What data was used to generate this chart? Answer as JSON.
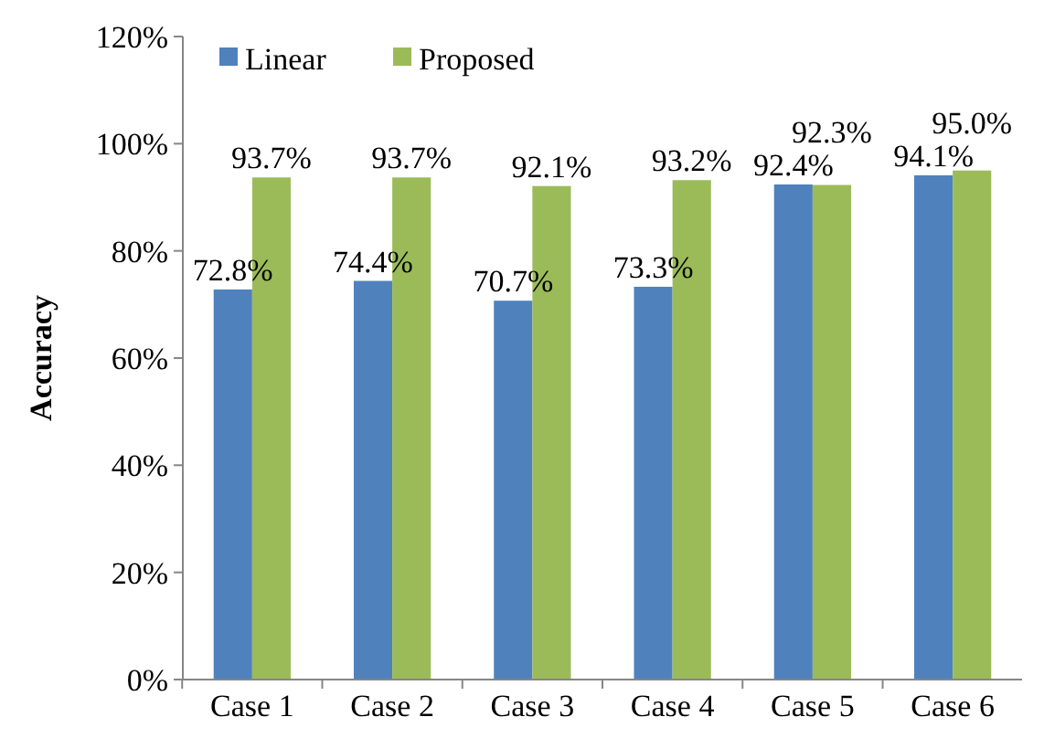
{
  "chart_data": {
    "type": "bar",
    "ylabel": "Accuracy",
    "categories": [
      "Case 1",
      "Case 2",
      "Case 3",
      "Case 4",
      "Case 5",
      "Case 6"
    ],
    "series": [
      {
        "name": "Linear",
        "color": "#4f81bd",
        "values": [
          72.8,
          74.4,
          70.7,
          73.3,
          92.4,
          94.1
        ],
        "value_labels": [
          "72.8%",
          "74.4%",
          "70.7%",
          "73.3%",
          "92.4%",
          "94.1%"
        ]
      },
      {
        "name": "Proposed",
        "color": "#9bbb59",
        "values": [
          93.7,
          93.7,
          92.1,
          93.2,
          92.3,
          95.0
        ],
        "value_labels": [
          "93.7%",
          "93.7%",
          "92.1%",
          "93.2%",
          "92.3%",
          "95.0%"
        ]
      }
    ],
    "ylim": [
      0,
      120
    ],
    "yticks": [
      {
        "value": 0,
        "label": "0%"
      },
      {
        "value": 20,
        "label": "20%"
      },
      {
        "value": 40,
        "label": "40%"
      },
      {
        "value": 60,
        "label": "60%"
      },
      {
        "value": 80,
        "label": "80%"
      },
      {
        "value": 100,
        "label": "100%"
      },
      {
        "value": 120,
        "label": "120%"
      }
    ],
    "grid": false,
    "legend": "top left"
  }
}
